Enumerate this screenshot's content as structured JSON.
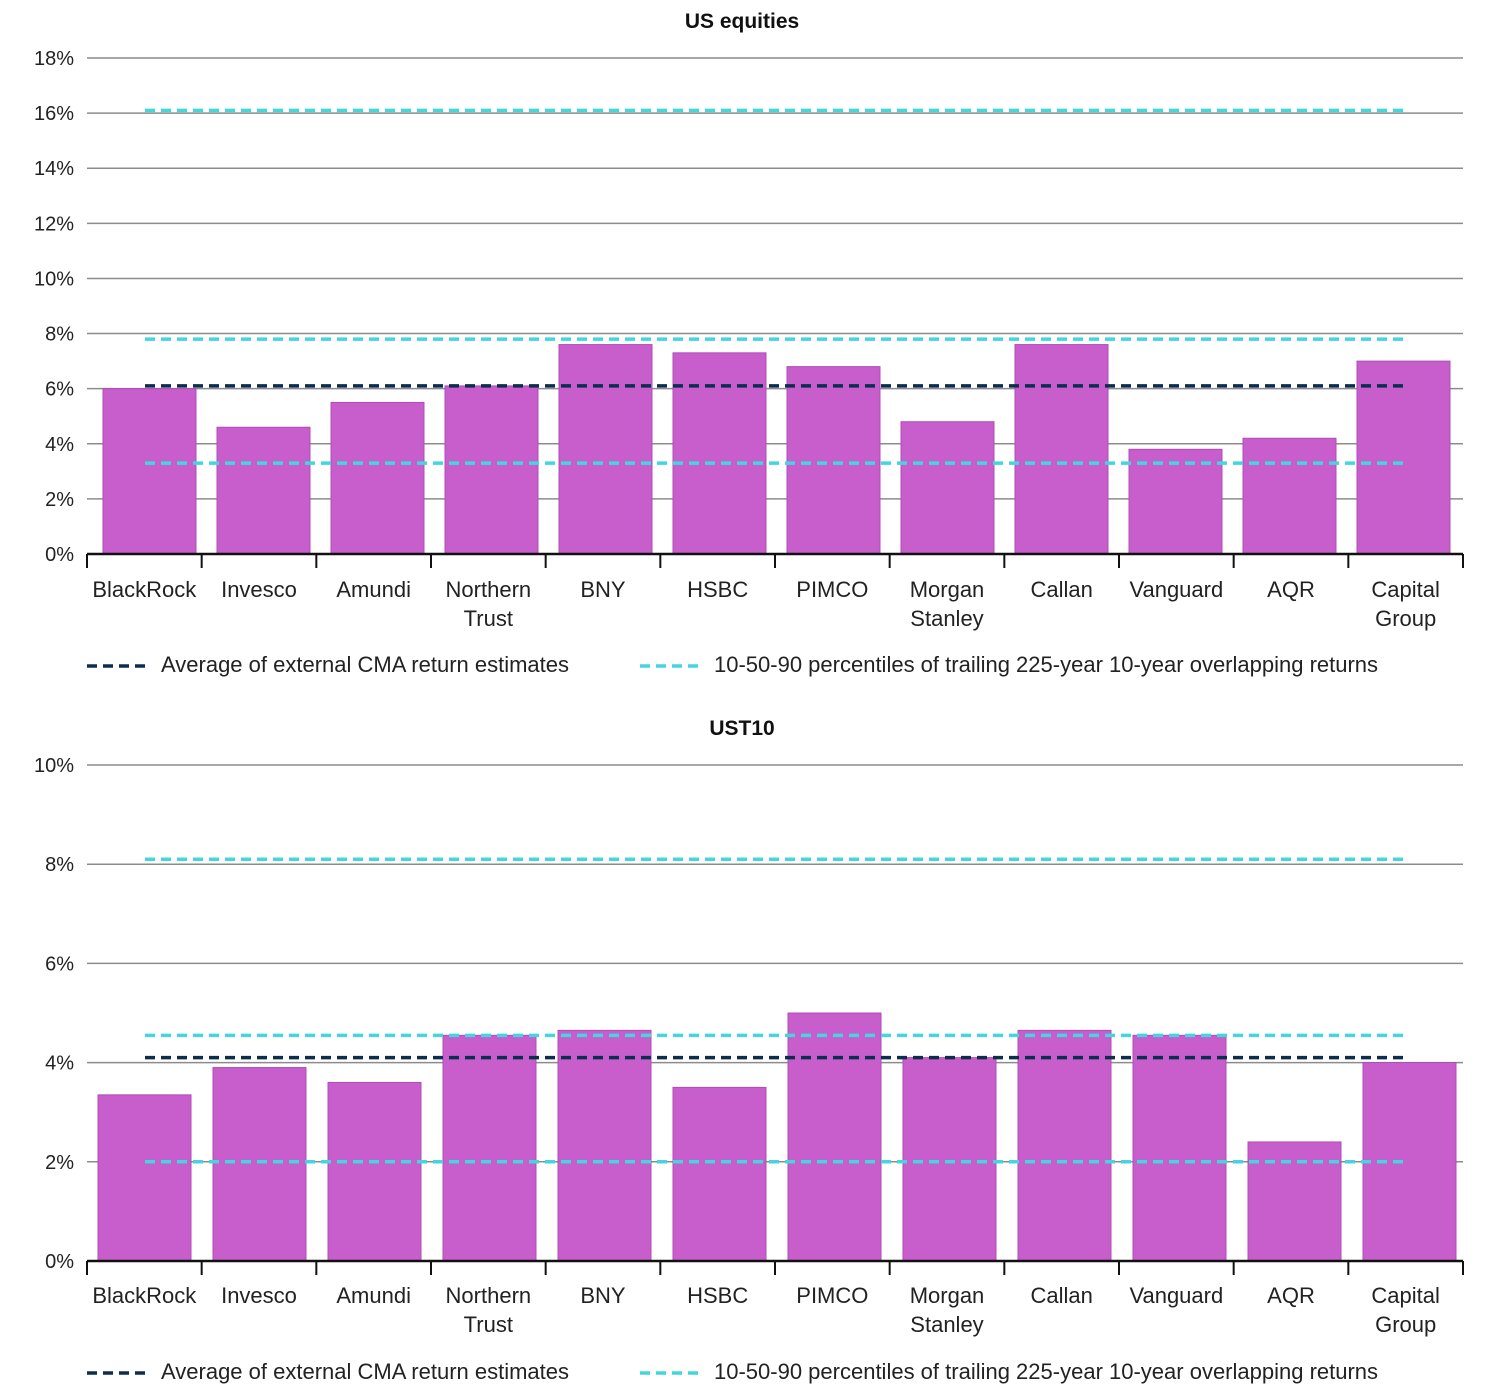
{
  "colors": {
    "bar": "#c75ecb",
    "bar_edge": "#b24bb8",
    "average_line": "#0b2e4f",
    "percentile_line": "#42d6e0",
    "gridline": "#8c8c8c",
    "axis": "#111111"
  },
  "chart_data": [
    {
      "type": "bar",
      "title": "US equities",
      "categories": [
        "BlackRock",
        "Invesco",
        "Amundi",
        "Northern Trust",
        "BNY",
        "HSBC",
        "PIMCO",
        "Morgan Stanley",
        "Callan",
        "Vanguard",
        "AQR",
        "Capital Group"
      ],
      "values": [
        6.0,
        4.6,
        5.5,
        6.1,
        7.6,
        7.3,
        6.8,
        4.8,
        7.6,
        3.8,
        4.2,
        7.0
      ],
      "unit": "%",
      "ylim": [
        0,
        18
      ],
      "yticks": [
        "0%",
        "2%",
        "4%",
        "6%",
        "8%",
        "10%",
        "12%",
        "14%",
        "16%",
        "18%"
      ],
      "grid": true,
      "reference_lines": [
        {
          "kind": "average",
          "value": 6.1
        },
        {
          "kind": "percentile",
          "value": 3.3
        },
        {
          "kind": "percentile",
          "value": 7.8
        },
        {
          "kind": "percentile",
          "value": 16.1
        }
      ],
      "legend": [
        {
          "kind": "average",
          "label": "Average of external CMA return estimates"
        },
        {
          "kind": "percentile",
          "label": "10-50-90 percentiles of trailing 225-year 10-year overlapping returns"
        }
      ],
      "legend_position": "bottom"
    },
    {
      "type": "bar",
      "title": "UST10",
      "categories": [
        "BlackRock",
        "Invesco",
        "Amundi",
        "Northern Trust",
        "BNY",
        "HSBC",
        "PIMCO",
        "Morgan Stanley",
        "Callan",
        "Vanguard",
        "AQR",
        "Capital Group"
      ],
      "values": [
        3.35,
        3.9,
        3.6,
        4.55,
        4.65,
        3.5,
        5.0,
        4.1,
        4.65,
        4.55,
        2.4,
        4.0
      ],
      "unit": "%",
      "ylim": [
        0,
        10
      ],
      "yticks": [
        "0%",
        "2%",
        "4%",
        "6%",
        "8%",
        "10%"
      ],
      "grid": true,
      "reference_lines": [
        {
          "kind": "average",
          "value": 4.1
        },
        {
          "kind": "percentile",
          "value": 2.0
        },
        {
          "kind": "percentile",
          "value": 4.55
        },
        {
          "kind": "percentile",
          "value": 8.1
        }
      ],
      "legend": [
        {
          "kind": "average",
          "label": "Average of external CMA return estimates"
        },
        {
          "kind": "percentile",
          "label": "10-50-90 percentiles of trailing 225-year 10-year overlapping returns"
        }
      ],
      "legend_position": "bottom"
    }
  ]
}
